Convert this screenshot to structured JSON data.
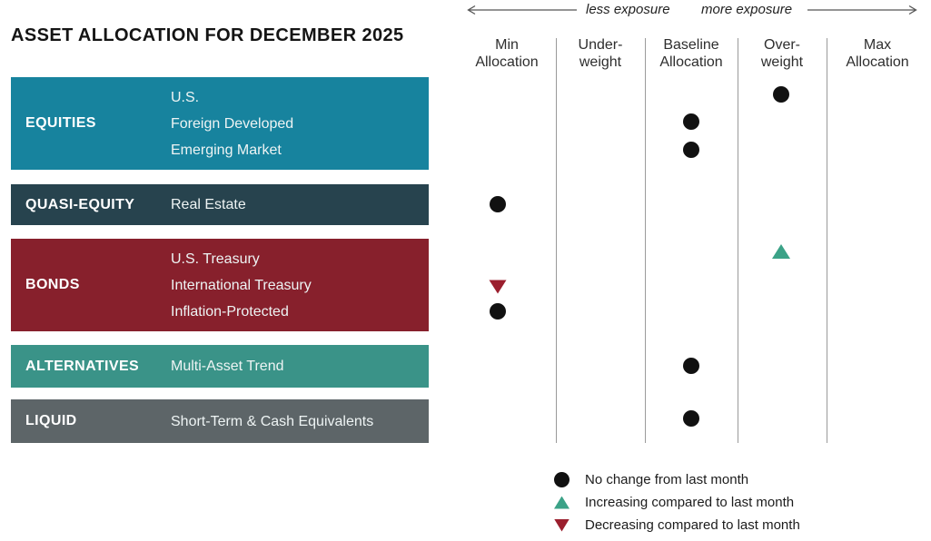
{
  "title": "ASSET ALLOCATION FOR DECEMBER 2025",
  "exposure": {
    "less": "less exposure",
    "more": "more exposure"
  },
  "categories": [
    {
      "label": "EQUITIES",
      "color": "#17839E",
      "items": [
        "U.S.",
        "Foreign Developed",
        "Emerging Market"
      ]
    },
    {
      "label": "QUASI-EQUITY",
      "color": "#27434E",
      "items": [
        "Real Estate"
      ]
    },
    {
      "label": "BONDS",
      "color": "#87202C",
      "items": [
        "U.S. Treasury",
        "International Treasury",
        "Inflation-Protected"
      ]
    },
    {
      "label": "ALTERNATIVES",
      "color": "#3A9388",
      "items": [
        "Multi-Asset Trend"
      ]
    },
    {
      "label": "LIQUID",
      "color": "#5D6568",
      "items": [
        "Short-Term & Cash Equivalents"
      ]
    }
  ],
  "chart_data": {
    "type": "dot-matrix",
    "title": "Asset Allocation for December 2025",
    "columns": [
      {
        "key": "min",
        "label": "Min\nAllocation"
      },
      {
        "key": "under",
        "label": "Under-\nweight"
      },
      {
        "key": "baseline",
        "label": "Baseline\nAllocation"
      },
      {
        "key": "over",
        "label": "Over-\nweight"
      },
      {
        "key": "max",
        "label": "Max\nAllocation"
      }
    ],
    "rows": [
      {
        "category": "EQUITIES",
        "asset": "U.S.",
        "column": "over",
        "marker": "dot"
      },
      {
        "category": "EQUITIES",
        "asset": "Foreign Developed",
        "column": "baseline",
        "marker": "dot"
      },
      {
        "category": "EQUITIES",
        "asset": "Emerging Market",
        "column": "baseline",
        "marker": "dot"
      },
      {
        "category": "QUASI-EQUITY",
        "asset": "Real Estate",
        "column": "min",
        "marker": "dot"
      },
      {
        "category": "BONDS",
        "asset": "U.S. Treasury",
        "column": "over",
        "marker": "triangle-up"
      },
      {
        "category": "BONDS",
        "asset": "International Treasury",
        "column": "min",
        "marker": "triangle-down"
      },
      {
        "category": "BONDS",
        "asset": "Inflation-Protected",
        "column": "min",
        "marker": "dot"
      },
      {
        "category": "ALTERNATIVES",
        "asset": "Multi-Asset Trend",
        "column": "baseline",
        "marker": "dot"
      },
      {
        "category": "LIQUID",
        "asset": "Short-Term & Cash Equivalents",
        "column": "baseline",
        "marker": "dot"
      }
    ],
    "marker_colors": {
      "dot": "#111111",
      "triangle-up": "#3BA287",
      "triangle-down": "#9B1F2E"
    },
    "legend_position": "bottom-right",
    "grid": "vertical-dividers-only"
  },
  "legend": [
    {
      "marker": "dot",
      "label": "No change from last month"
    },
    {
      "marker": "triangle-up",
      "label": "Increasing compared to last month"
    },
    {
      "marker": "triangle-down",
      "label": "Decreasing compared to last month"
    }
  ]
}
